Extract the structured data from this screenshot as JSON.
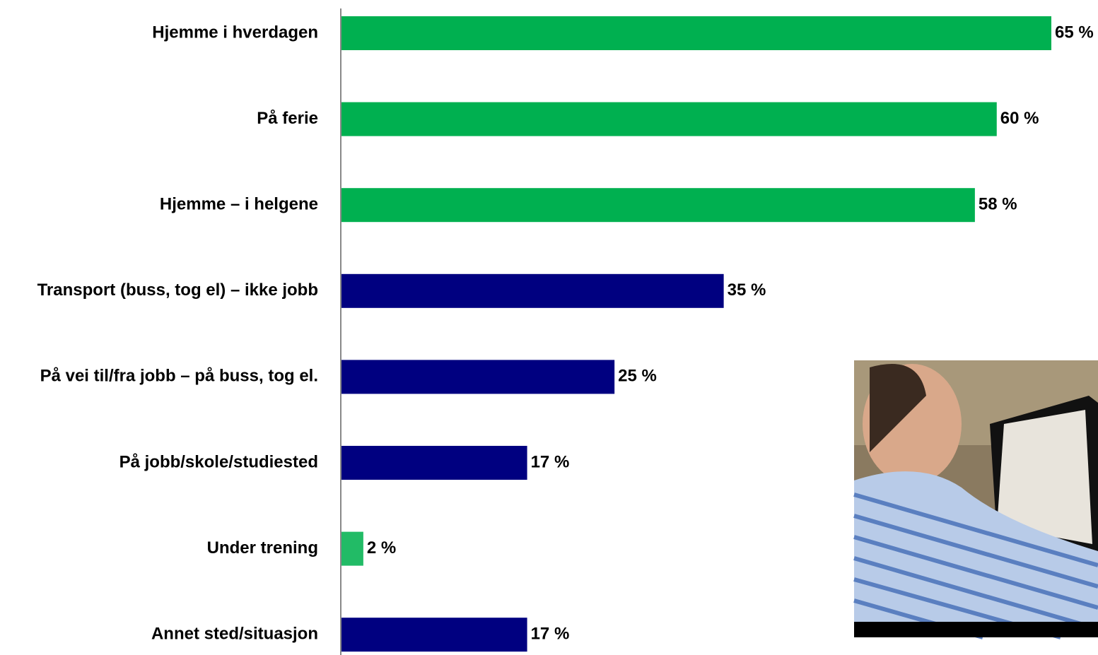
{
  "chart_data": {
    "type": "bar",
    "orientation": "horizontal",
    "categories": [
      "Hjemme i hverdagen",
      "På ferie",
      "Hjemme – i helgene",
      "Transport (buss, tog el) – ikke jobb",
      "På vei til/fra jobb – på buss, tog el.",
      "På jobb/skole/studiested",
      "Under trening",
      "Annet sted/situasjon"
    ],
    "values": [
      65,
      60,
      58,
      35,
      25,
      17,
      2,
      17
    ],
    "value_labels": [
      "65 %",
      "60 %",
      "58 %",
      "35 %",
      "25 %",
      "17 %",
      "2 %",
      "17 %"
    ],
    "colors": [
      "#00b050",
      "#00b050",
      "#00b050",
      "#000080",
      "#000080",
      "#000080",
      "#22bb66",
      "#000080"
    ]
  }
}
